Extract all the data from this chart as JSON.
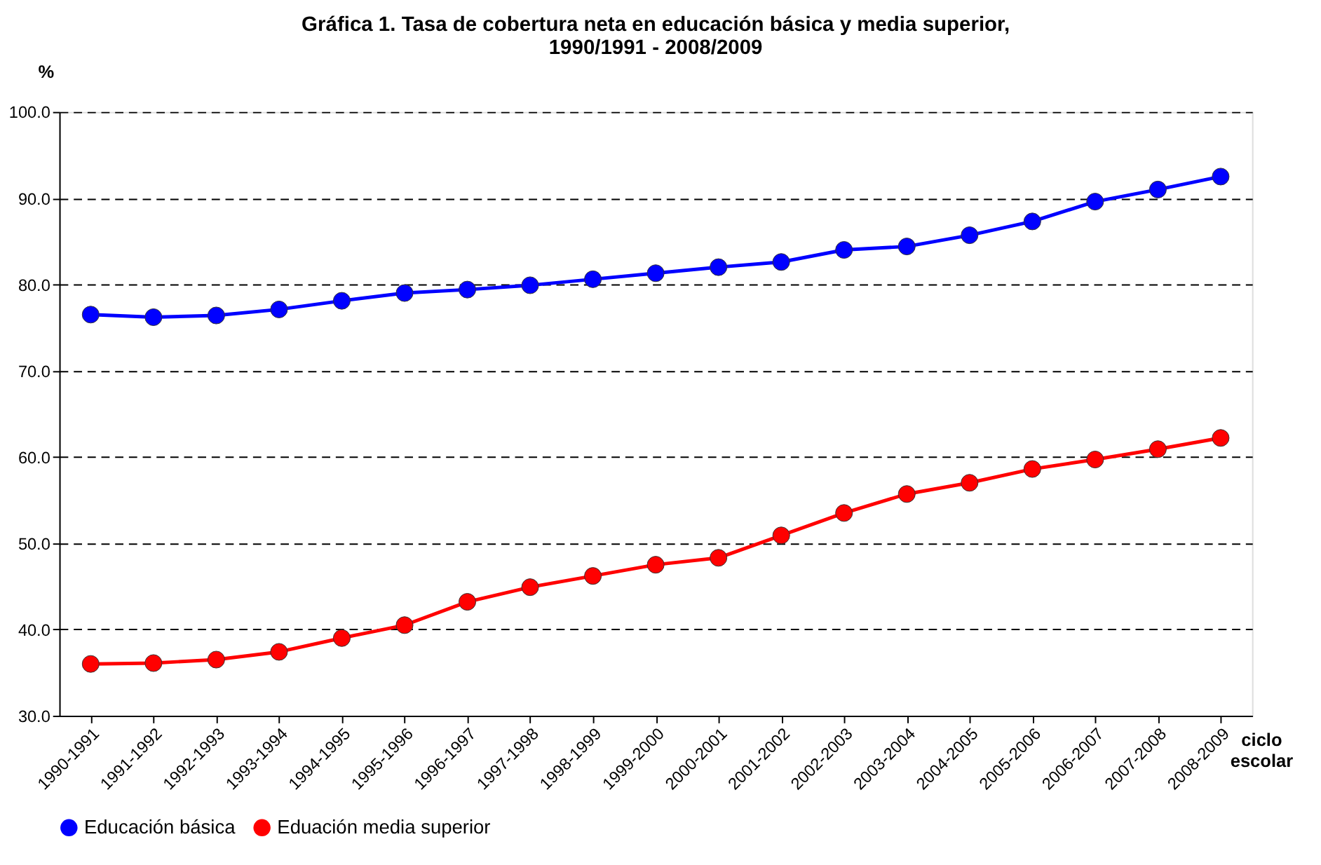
{
  "chart_data": {
    "type": "line",
    "title": "Gráfica 1. Tasa de cobertura neta en educación básica y media superior,\n1990/1991 - 2008/2009",
    "ylabel": "%",
    "xlabel": "ciclo escolar",
    "categories": [
      "1990-1991",
      "1991-1992",
      "1992-1993",
      "1993-1994",
      "1994-1995",
      "1995-1996",
      "1996-1997",
      "1997-1998",
      "1998-1999",
      "1999-2000",
      "2000-2001",
      "2001-2002",
      "2002-2003",
      "2003-2004",
      "2004-2005",
      "2005-2006",
      "2006-2007",
      "2007-2008",
      "2008-2009"
    ],
    "series": [
      {
        "name": "Educación básica",
        "color": "#0000ff",
        "values": [
          76.5,
          76.2,
          76.4,
          77.1,
          78.1,
          79.0,
          79.4,
          79.9,
          80.6,
          81.3,
          82.0,
          82.6,
          84.0,
          84.4,
          85.7,
          87.3,
          89.6,
          91.0,
          92.5
        ]
      },
      {
        "name": "Eduación media superior",
        "color": "#ff0000",
        "values": [
          36.0,
          36.1,
          36.5,
          37.4,
          39.0,
          40.5,
          43.2,
          44.9,
          46.2,
          47.5,
          48.3,
          50.9,
          53.5,
          55.7,
          57.0,
          58.6,
          59.7,
          60.9,
          62.2
        ]
      }
    ],
    "ylim": [
      30,
      100
    ],
    "yticks": [
      {
        "value": 30,
        "label": "30.0"
      },
      {
        "value": 40,
        "label": "40.0"
      },
      {
        "value": 50,
        "label": "50.0"
      },
      {
        "value": 60,
        "label": "60.0"
      },
      {
        "value": 70,
        "label": "70.0"
      },
      {
        "value": 80,
        "label": "80.0"
      },
      {
        "value": 90,
        "label": "90.0"
      },
      {
        "value": 100,
        "label": "100.0"
      }
    ],
    "grid": "y",
    "line_style": "solid",
    "marker": "circle",
    "legend": "bottom"
  }
}
